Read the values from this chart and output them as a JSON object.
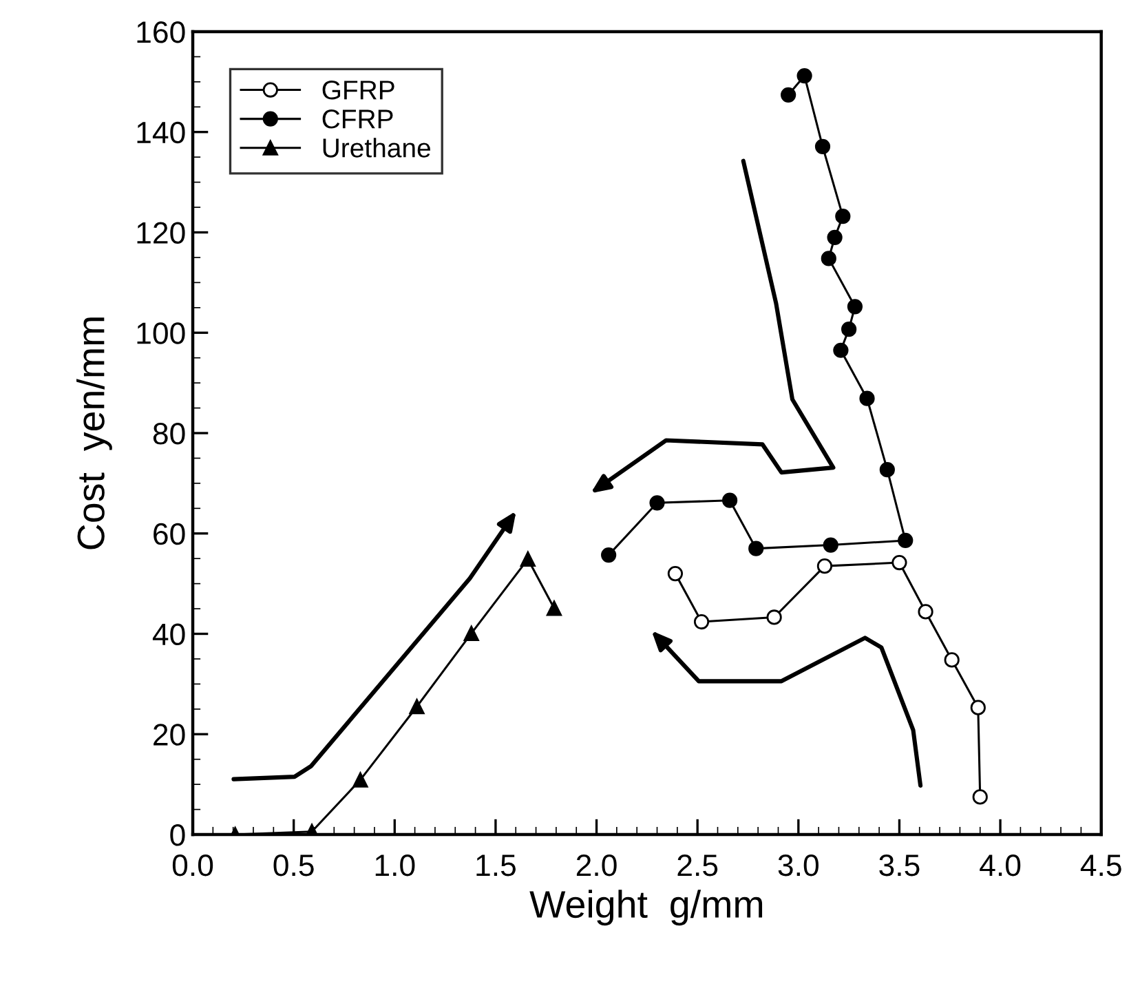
{
  "chart_data": {
    "type": "line",
    "xlabel": "Weight  g/mm",
    "ylabel": "Cost  yen/mm",
    "xlim": [
      0,
      4.5
    ],
    "ylim": [
      0,
      160
    ],
    "xticks": [
      {
        "value": 0,
        "label": "0.0"
      },
      {
        "value": 0.5,
        "label": "0.5"
      },
      {
        "value": 1,
        "label": "1.0"
      },
      {
        "value": 1.5,
        "label": "1.5"
      },
      {
        "value": 2,
        "label": "2.0"
      },
      {
        "value": 2.5,
        "label": "2.5"
      },
      {
        "value": 3,
        "label": "3.0"
      },
      {
        "value": 3.5,
        "label": "3.5"
      },
      {
        "value": 4,
        "label": "4.0"
      },
      {
        "value": 4.5,
        "label": "4.5"
      }
    ],
    "yticks": [
      0,
      20,
      40,
      60,
      80,
      100,
      120,
      140,
      160
    ],
    "grid": false,
    "legend": "top left",
    "line_style": "solid",
    "series": [
      {
        "name": "GFRP",
        "color": "#ffffff",
        "marker": "circle",
        "x": [
          2.39,
          2.52,
          2.88,
          3.13,
          3.5,
          3.63,
          3.76,
          3.89,
          3.9
        ],
        "values": [
          52.0,
          42.4,
          43.3,
          53.5,
          54.2,
          44.4,
          34.8,
          25.3,
          7.5
        ]
      },
      {
        "name": "CFRP",
        "color": "#000000",
        "marker": "circle",
        "x": [
          2.06,
          2.3,
          2.66,
          2.79,
          3.16,
          3.53,
          3.44,
          3.34,
          3.21,
          3.25,
          3.28,
          3.15,
          3.18,
          3.22,
          3.12,
          3.03,
          2.95
        ],
        "values": [
          55.7,
          66.1,
          66.6,
          57.0,
          57.7,
          58.6,
          72.7,
          86.9,
          96.5,
          100.7,
          105.2,
          114.8,
          119.0,
          123.2,
          137.1,
          151.2,
          147.4
        ]
      },
      {
        "name": "Urethane",
        "color": "#000000",
        "marker": "triangle",
        "x": [
          0.21,
          0.59,
          0.83,
          1.11,
          1.38,
          1.66,
          1.79
        ],
        "values": [
          0,
          0.6,
          10.9,
          25.5,
          40.1,
          54.9,
          45.1
        ]
      }
    ]
  }
}
